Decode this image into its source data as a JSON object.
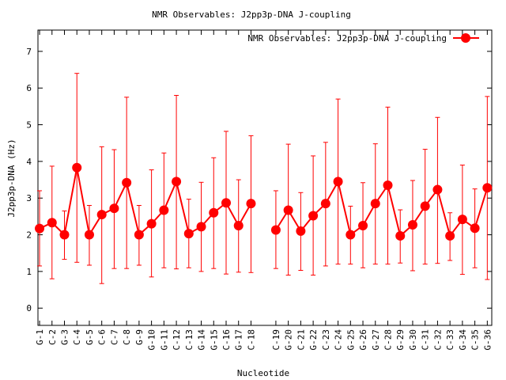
{
  "chart_data": {
    "type": "line",
    "title": "NMR Observables: J2pp3p-DNA J-coupling",
    "xlabel": "Nucleotide",
    "ylabel": "J2pp3p-DNA (Hz)",
    "legend": {
      "label": "NMR Observables: J2pp3p-DNA J-coupling",
      "placement": "top-right"
    },
    "ylim": [
      -0.47,
      7.58
    ],
    "yticks": [
      0,
      1,
      2,
      3,
      4,
      5,
      6,
      7
    ],
    "grid": false,
    "color": "#ff0000",
    "series": [
      {
        "name": "NMR Observables: J2pp3p-DNA J-coupling",
        "segments": [
          [
            {
              "label": "G-1",
              "x": 1,
              "y": 2.17,
              "lo": 1.15,
              "hi": 3.2
            },
            {
              "label": "C-2",
              "x": 2,
              "y": 2.33,
              "lo": 0.8,
              "hi": 3.87
            },
            {
              "label": "G-3",
              "x": 3,
              "y": 2.0,
              "lo": 1.33,
              "hi": 2.65
            },
            {
              "label": "C-4",
              "x": 4,
              "y": 3.83,
              "lo": 1.25,
              "hi": 6.4
            },
            {
              "label": "G-5",
              "x": 5,
              "y": 2.0,
              "lo": 1.17,
              "hi": 2.8
            },
            {
              "label": "C-6",
              "x": 6,
              "y": 2.55,
              "lo": 0.67,
              "hi": 4.4
            },
            {
              "label": "C-7",
              "x": 7,
              "y": 2.72,
              "lo": 1.08,
              "hi": 4.32
            },
            {
              "label": "C-8",
              "x": 8,
              "y": 3.42,
              "lo": 1.08,
              "hi": 5.75
            },
            {
              "label": "G-9",
              "x": 9,
              "y": 2.0,
              "lo": 1.17,
              "hi": 2.8
            },
            {
              "label": "G-10",
              "x": 10,
              "y": 2.3,
              "lo": 0.85,
              "hi": 3.77
            },
            {
              "label": "G-11",
              "x": 11,
              "y": 2.67,
              "lo": 1.1,
              "hi": 4.23
            },
            {
              "label": "C-12",
              "x": 12,
              "y": 3.45,
              "lo": 1.07,
              "hi": 5.8
            },
            {
              "label": "C-13",
              "x": 13,
              "y": 2.03,
              "lo": 1.1,
              "hi": 2.97
            },
            {
              "label": "G-14",
              "x": 14,
              "y": 2.22,
              "lo": 1.0,
              "hi": 3.43
            },
            {
              "label": "G-15",
              "x": 15,
              "y": 2.6,
              "lo": 1.08,
              "hi": 4.1
            },
            {
              "label": "C-16",
              "x": 16,
              "y": 2.87,
              "lo": 0.93,
              "hi": 4.82
            },
            {
              "label": "G-17",
              "x": 17,
              "y": 2.25,
              "lo": 0.98,
              "hi": 3.5
            },
            {
              "label": "C-18",
              "x": 18,
              "y": 2.85,
              "lo": 0.97,
              "hi": 4.7
            }
          ],
          [
            {
              "label": "C-19",
              "x": 20,
              "y": 2.13,
              "lo": 1.08,
              "hi": 3.2
            },
            {
              "label": "G-20",
              "x": 21,
              "y": 2.67,
              "lo": 0.9,
              "hi": 4.47
            },
            {
              "label": "C-21",
              "x": 22,
              "y": 2.1,
              "lo": 1.03,
              "hi": 3.15
            },
            {
              "label": "G-22",
              "x": 23,
              "y": 2.52,
              "lo": 0.9,
              "hi": 4.15
            },
            {
              "label": "C-23",
              "x": 24,
              "y": 2.85,
              "lo": 1.15,
              "hi": 4.52
            },
            {
              "label": "C-24",
              "x": 25,
              "y": 3.45,
              "lo": 1.2,
              "hi": 5.7
            },
            {
              "label": "G-25",
              "x": 26,
              "y": 2.0,
              "lo": 1.2,
              "hi": 2.78
            },
            {
              "label": "G-26",
              "x": 27,
              "y": 2.25,
              "lo": 1.1,
              "hi": 3.42
            },
            {
              "label": "G-27",
              "x": 28,
              "y": 2.85,
              "lo": 1.2,
              "hi": 4.48
            },
            {
              "label": "C-28",
              "x": 29,
              "y": 3.35,
              "lo": 1.2,
              "hi": 5.48
            },
            {
              "label": "G-29",
              "x": 30,
              "y": 1.97,
              "lo": 1.23,
              "hi": 2.68
            },
            {
              "label": "G-30",
              "x": 31,
              "y": 2.27,
              "lo": 1.02,
              "hi": 3.48
            },
            {
              "label": "C-31",
              "x": 32,
              "y": 2.78,
              "lo": 1.2,
              "hi": 4.33
            },
            {
              "label": "C-32",
              "x": 33,
              "y": 3.23,
              "lo": 1.22,
              "hi": 5.2
            },
            {
              "label": "C-33",
              "x": 34,
              "y": 1.97,
              "lo": 1.3,
              "hi": 2.6
            },
            {
              "label": "G-34",
              "x": 35,
              "y": 2.42,
              "lo": 0.92,
              "hi": 3.9
            },
            {
              "label": "C-35",
              "x": 36,
              "y": 2.18,
              "lo": 1.1,
              "hi": 3.25
            },
            {
              "label": "G-36",
              "x": 37,
              "y": 3.28,
              "lo": 0.78,
              "hi": 5.77
            }
          ]
        ]
      }
    ]
  }
}
